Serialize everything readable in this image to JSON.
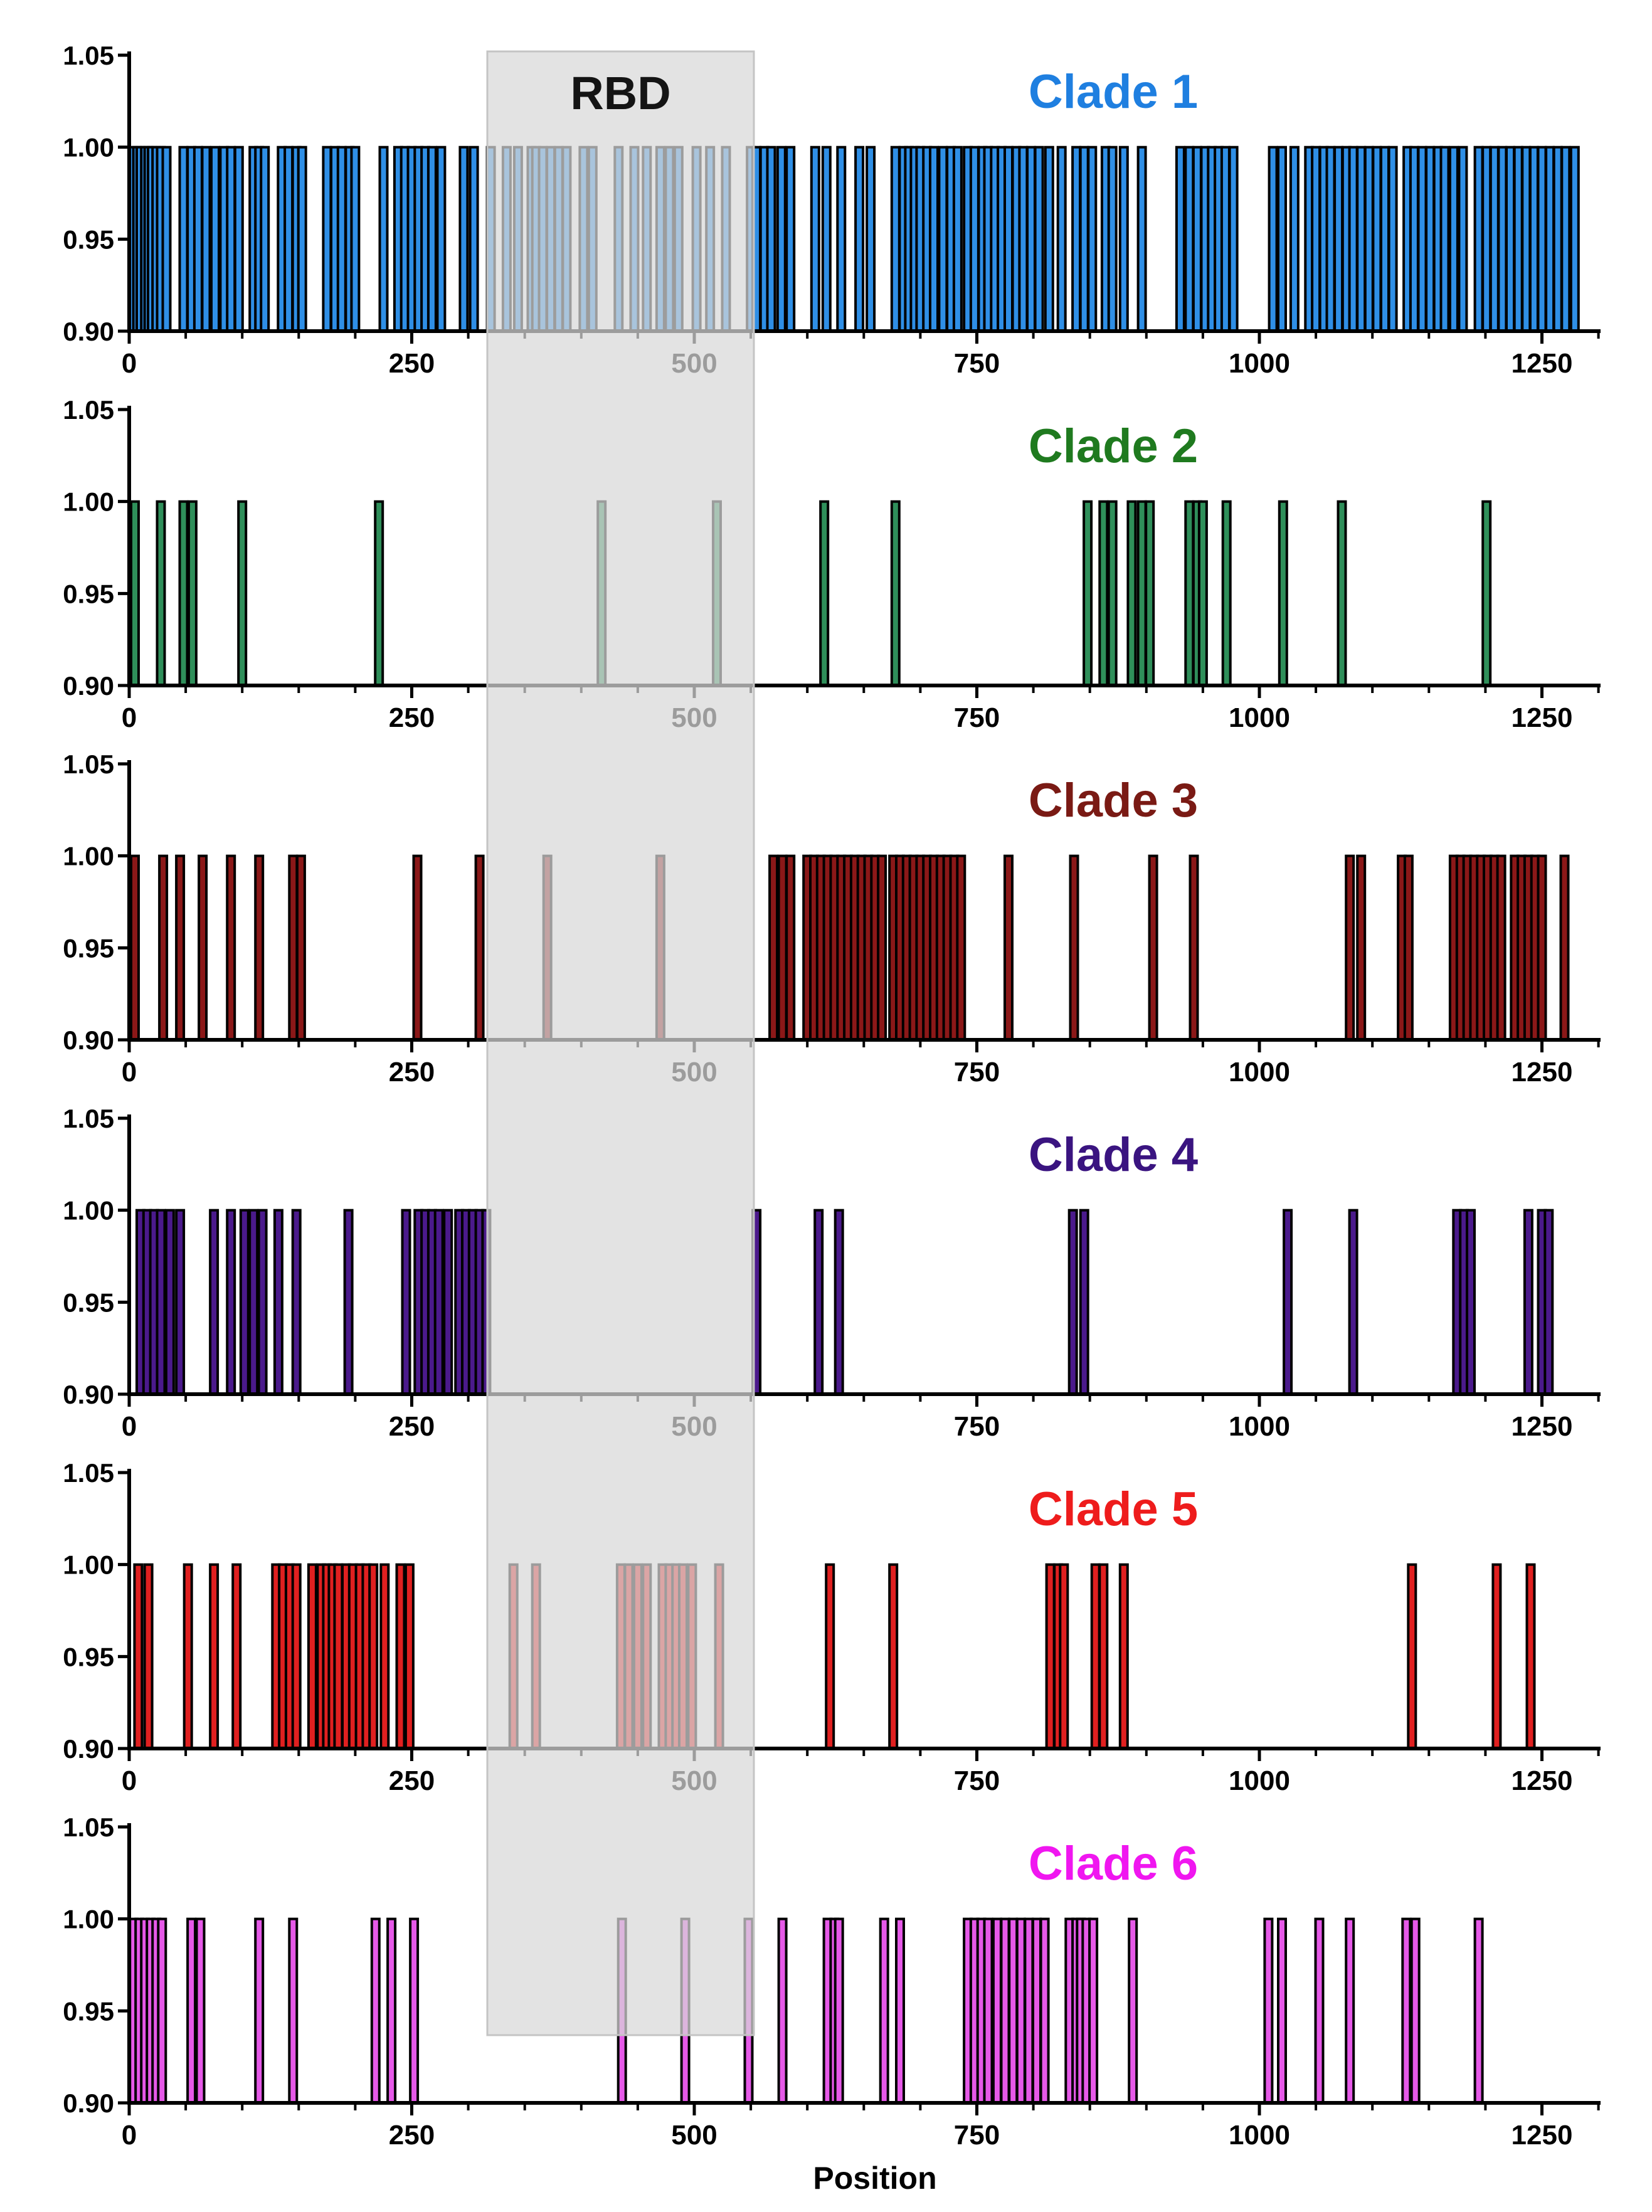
{
  "chart_data": {
    "type": "bar",
    "xlabel": "Position",
    "x_ticks": [
      "0",
      "250",
      "500",
      "750",
      "1000",
      "1250"
    ],
    "y_ticks": [
      "0.90",
      "0.95",
      "1.00",
      "1.05"
    ],
    "region": {
      "label": "RBD",
      "start": 319,
      "end": 548
    },
    "xlim": [
      0,
      1300
    ],
    "ylim": [
      0.9,
      1.05
    ],
    "panels": [
      {
        "title": "Clade 1",
        "color": "#2F8FE6",
        "title_color": "#1F7FE0",
        "value": 1.0,
        "positions": [
          3,
          7,
          10,
          14,
          17,
          20,
          24,
          28,
          33,
          48,
          55,
          61,
          68,
          76,
          84,
          90,
          97,
          110,
          115,
          120,
          135,
          141,
          148,
          153,
          175,
          182,
          188,
          195,
          200,
          225,
          238,
          244,
          250,
          256,
          262,
          268,
          276,
          296,
          305,
          320,
          334,
          344,
          356,
          360,
          366,
          373,
          380,
          387,
          402,
          410,
          433,
          447,
          458,
          470,
          478,
          486,
          502,
          514,
          528,
          550,
          555,
          562,
          568,
          577,
          585,
          607,
          617,
          630,
          646,
          656,
          678,
          685,
          690,
          695,
          700,
          706,
          712,
          720,
          727,
          733,
          742,
          748,
          755,
          760,
          766,
          772,
          778,
          785,
          791,
          798,
          805,
          814,
          825,
          838,
          845,
          852,
          864,
          870,
          880,
          896,
          930,
          938,
          945,
          952,
          958,
          964,
          970,
          977,
          1012,
          1020,
          1031,
          1044,
          1050,
          1057,
          1063,
          1070,
          1077,
          1083,
          1090,
          1097,
          1104,
          1111,
          1118,
          1131,
          1137,
          1144,
          1151,
          1158,
          1164,
          1172,
          1180,
          1194,
          1201,
          1208,
          1215,
          1222,
          1229,
          1236,
          1243,
          1250,
          1257,
          1264,
          1271,
          1279
        ]
      },
      {
        "title": "Clade 2",
        "color": "#2F8F5A",
        "title_color": "#1F7A1F",
        "value": 1.0,
        "positions": [
          5,
          28,
          48,
          56,
          100,
          221,
          418,
          520,
          615,
          678,
          848,
          862,
          870,
          887,
          896,
          903,
          938,
          945,
          950,
          971,
          1021,
          1073,
          1201
        ]
      },
      {
        "title": "Clade 3",
        "color": "#8B1818",
        "title_color": "#7A1A14",
        "value": 1.0,
        "positions": [
          5,
          30,
          45,
          65,
          90,
          115,
          145,
          152,
          255,
          310,
          370,
          470,
          570,
          578,
          585,
          600,
          606,
          612,
          618,
          624,
          630,
          636,
          642,
          648,
          654,
          660,
          666,
          676,
          682,
          688,
          694,
          700,
          706,
          712,
          718,
          724,
          730,
          736,
          778,
          836,
          906,
          942,
          1080,
          1090,
          1126,
          1132,
          1172,
          1178,
          1184,
          1190,
          1196,
          1202,
          1208,
          1214,
          1226,
          1232,
          1238,
          1244,
          1250,
          1270
        ]
      },
      {
        "title": "Clade 4",
        "color": "#4B1A8C",
        "title_color": "#3A1480",
        "value": 1.0,
        "positions": [
          10,
          16,
          22,
          28,
          36,
          45,
          75,
          90,
          102,
          110,
          118,
          132,
          148,
          194,
          245,
          256,
          262,
          268,
          274,
          282,
          292,
          298,
          304,
          310,
          316,
          555,
          610,
          628,
          835,
          845,
          1025,
          1083,
          1175,
          1181,
          1187,
          1238,
          1250,
          1256
        ]
      },
      {
        "title": "Clade 5",
        "color": "#E02020",
        "title_color": "#EE1C1C",
        "value": 1.0,
        "positions": [
          8,
          17,
          52,
          75,
          95,
          130,
          136,
          142,
          148,
          162,
          170,
          175,
          180,
          185,
          192,
          198,
          204,
          210,
          216,
          226,
          240,
          248,
          340,
          360,
          435,
          442,
          450,
          458,
          472,
          478,
          484,
          490,
          498,
          522,
          620,
          676,
          815,
          822,
          827,
          855,
          862,
          880,
          1135,
          1210,
          1240
        ]
      },
      {
        "title": "Clade 6",
        "color": "#E659E8",
        "title_color": "#F016F0",
        "value": 1.0,
        "positions": [
          4,
          9,
          14,
          19,
          24,
          29,
          55,
          63,
          115,
          145,
          218,
          232,
          252,
          436,
          492,
          548,
          578,
          618,
          624,
          628,
          668,
          682,
          742,
          748,
          754,
          760,
          768,
          775,
          782,
          789,
          796,
          803,
          810,
          832,
          838,
          842,
          847,
          853,
          888,
          1008,
          1020,
          1053,
          1080,
          1130,
          1138,
          1194
        ]
      }
    ]
  }
}
